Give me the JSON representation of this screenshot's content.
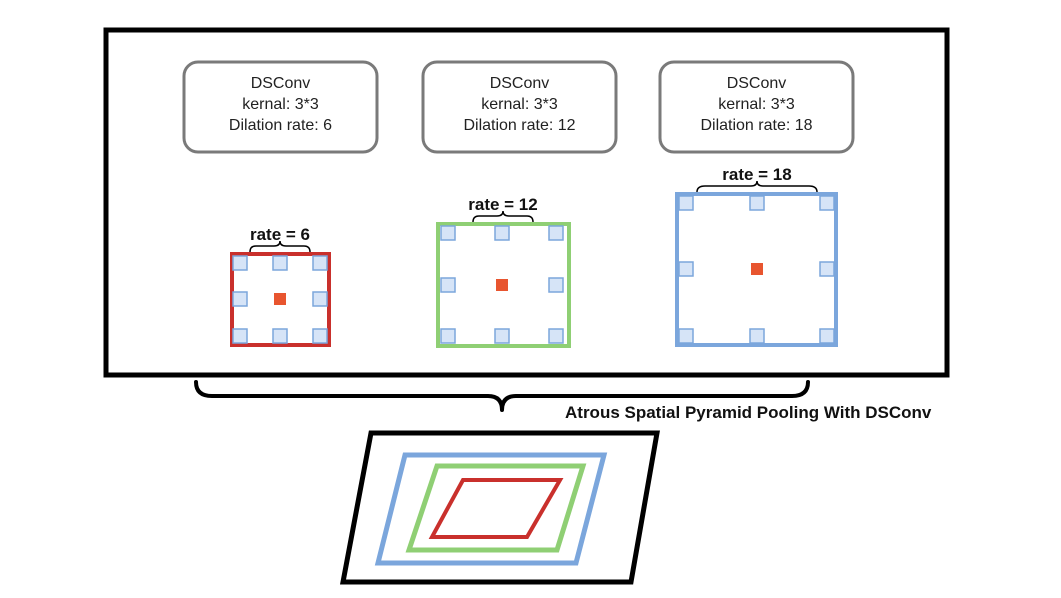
{
  "colors": {
    "frame": "#000000",
    "box_border": "#7a7a7a",
    "red": "#c9302c",
    "green": "#8fcf74",
    "blue": "#7ba6dc",
    "sample_fill": "#d6e4f7",
    "sample_stroke": "#7ba6dc",
    "center": "#e8552f"
  },
  "blocks": [
    {
      "line1": "DSConv",
      "line2": "kernal: 3*3",
      "line3": "Dilation rate: 6",
      "rate_label": "rate = 6",
      "dilation": 6,
      "color": "#c9302c"
    },
    {
      "line1": "DSConv",
      "line2": "kernal: 3*3",
      "line3": "Dilation rate: 12",
      "rate_label": "rate = 12",
      "dilation": 12,
      "color": "#8fcf74"
    },
    {
      "line1": "DSConv",
      "line2": "kernal: 3*3",
      "line3": "Dilation rate: 18",
      "rate_label": "rate = 18",
      "dilation": 18,
      "color": "#7ba6dc"
    }
  ],
  "caption": "Atrous Spatial Pyramid Pooling With DSConv"
}
